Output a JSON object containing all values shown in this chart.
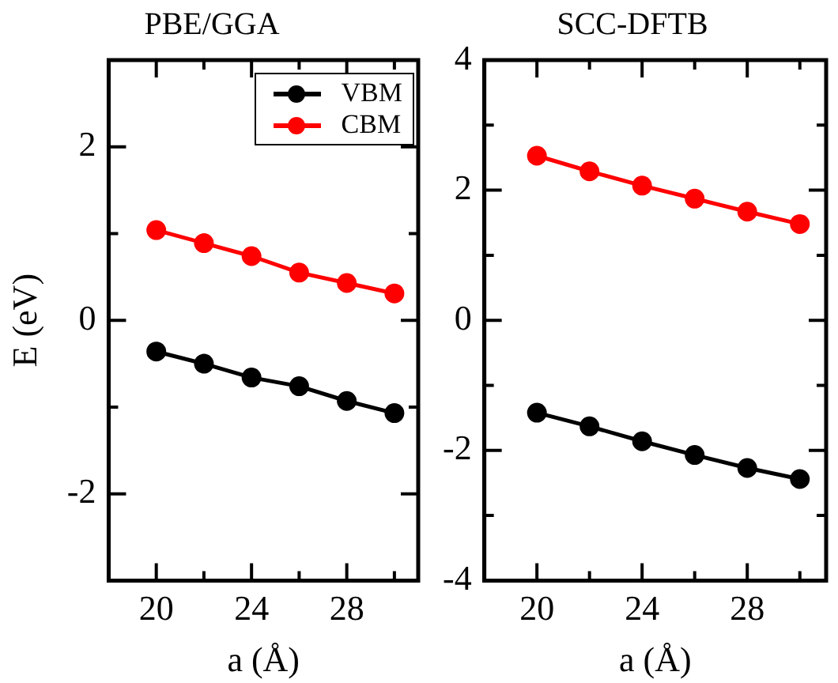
{
  "chart_data": [
    {
      "type": "line",
      "title": "PBE/GGA",
      "xlabel": "a (Å)",
      "ylabel": "E (eV)",
      "x": [
        20,
        22,
        24,
        26,
        28,
        30
      ],
      "series": [
        {
          "name": "VBM",
          "color": "#000000",
          "values": [
            -0.36,
            -0.5,
            -0.66,
            -0.76,
            -0.93,
            -1.07
          ]
        },
        {
          "name": "CBM",
          "color": "#ff0000",
          "values": [
            1.04,
            0.89,
            0.74,
            0.55,
            0.43,
            0.31
          ]
        }
      ],
      "xlim": [
        18,
        31
      ],
      "xticks": [
        20,
        {
          "value": 22,
          "label": null
        },
        24,
        {
          "value": 26,
          "label": null
        },
        28,
        {
          "value": 30,
          "label": null
        }
      ],
      "ylim": [
        -3,
        3
      ],
      "yticks": [
        {
          "value": -3,
          "label": null
        },
        -2,
        {
          "value": -1,
          "label": null
        },
        0,
        {
          "value": 1,
          "label": null
        },
        2,
        {
          "value": 3,
          "label": null
        }
      ],
      "legend": "top right",
      "marker": "circle",
      "line_style": "solid",
      "grid": false
    },
    {
      "type": "line",
      "title": "SCC-DFTB",
      "xlabel": "a (Å)",
      "x": [
        20,
        22,
        24,
        26,
        28,
        30
      ],
      "series": [
        {
          "color": "#000000",
          "values": [
            -1.42,
            -1.63,
            -1.86,
            -2.07,
            -2.27,
            -2.44
          ]
        },
        {
          "color": "#ff0000",
          "values": [
            2.53,
            2.29,
            2.07,
            1.87,
            1.67,
            1.48
          ]
        }
      ],
      "xlim": [
        18,
        31
      ],
      "xticks": [
        20,
        {
          "value": 22,
          "label": null
        },
        24,
        {
          "value": 26,
          "label": null
        },
        28,
        {
          "value": 30,
          "label": null
        }
      ],
      "ylim": [
        -4,
        4
      ],
      "yticks": [
        -4,
        {
          "value": -3,
          "label": null
        },
        -2,
        {
          "value": -1,
          "label": null
        },
        0,
        {
          "value": 1,
          "label": null
        },
        2,
        {
          "value": 3,
          "label": null
        },
        4
      ],
      "legend": false,
      "marker": "circle",
      "line_style": "solid",
      "grid": false
    }
  ]
}
